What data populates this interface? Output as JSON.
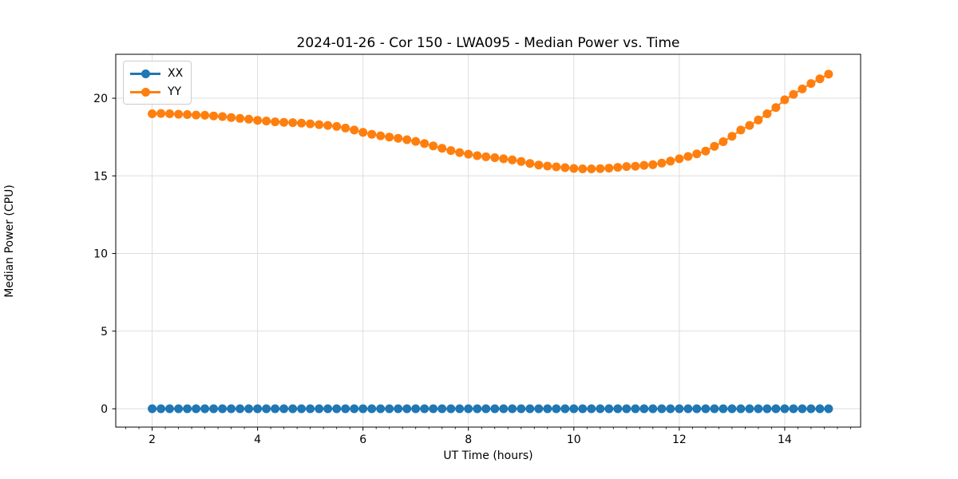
{
  "chart_data": {
    "type": "line",
    "title": "2024-01-26 - Cor 150 - LWA095 - Median Power vs. Time",
    "xlabel": "UT Time (hours)",
    "ylabel": "Median Power (CPU)",
    "xlim": [
      1.31,
      15.44
    ],
    "ylim": [
      -1.18,
      22.83
    ],
    "xticks": [
      2,
      4,
      6,
      8,
      10,
      12,
      14
    ],
    "yticks": [
      0,
      5,
      10,
      15,
      20
    ],
    "x_minor_tick_step": 0.25,
    "grid": "major-only",
    "grid_color": "#dedede",
    "legend_position": "upper-left",
    "x": [
      2,
      2.167,
      2.333,
      2.5,
      2.667,
      2.833,
      3,
      3.167,
      3.333,
      3.5,
      3.667,
      3.833,
      4,
      4.167,
      4.333,
      4.5,
      4.667,
      4.833,
      5,
      5.167,
      5.333,
      5.5,
      5.667,
      5.833,
      6,
      6.167,
      6.333,
      6.5,
      6.667,
      6.833,
      7,
      7.167,
      7.333,
      7.5,
      7.667,
      7.833,
      8,
      8.167,
      8.333,
      8.5,
      8.667,
      8.833,
      9,
      9.167,
      9.333,
      9.5,
      9.667,
      9.833,
      10,
      10.167,
      10.333,
      10.5,
      10.667,
      10.833,
      11,
      11.167,
      11.333,
      11.5,
      11.667,
      11.833,
      12,
      12.167,
      12.333,
      12.5,
      12.667,
      12.833,
      13,
      13.167,
      13.333,
      13.5,
      13.667,
      13.833,
      14,
      14.167,
      14.333,
      14.5,
      14.667,
      14.833
    ],
    "series": [
      {
        "name": "XX",
        "color": "#1f77b4",
        "values": [
          0,
          0,
          0,
          0,
          0,
          0,
          0,
          0,
          0,
          0,
          0,
          0,
          0,
          0,
          0,
          0,
          0,
          0,
          0,
          0,
          0,
          0,
          0,
          0,
          0,
          0,
          0,
          0,
          0,
          0,
          0,
          0,
          0,
          0,
          0,
          0,
          0,
          0,
          0,
          0,
          0,
          0,
          0,
          0,
          0,
          0,
          0,
          0,
          0,
          0,
          0,
          0,
          0,
          0,
          0,
          0,
          0,
          0,
          0,
          0,
          0,
          0,
          0,
          0,
          0,
          0,
          0,
          0,
          0,
          0,
          0,
          0,
          0,
          0,
          0,
          0,
          0,
          0
        ]
      },
      {
        "name": "YY",
        "color": "#ff7f0e",
        "values": [
          19.0,
          19.02,
          19.0,
          18.97,
          18.95,
          18.92,
          18.9,
          18.86,
          18.82,
          18.76,
          18.7,
          18.65,
          18.58,
          18.53,
          18.48,
          18.45,
          18.43,
          18.4,
          18.35,
          18.3,
          18.25,
          18.18,
          18.08,
          17.95,
          17.8,
          17.68,
          17.58,
          17.5,
          17.42,
          17.33,
          17.22,
          17.08,
          16.93,
          16.78,
          16.63,
          16.5,
          16.4,
          16.3,
          16.23,
          16.17,
          16.1,
          16.03,
          15.93,
          15.8,
          15.7,
          15.63,
          15.58,
          15.53,
          15.48,
          15.45,
          15.45,
          15.47,
          15.5,
          15.55,
          15.6,
          15.62,
          15.68,
          15.72,
          15.82,
          15.95,
          16.1,
          16.25,
          16.42,
          16.6,
          16.9,
          17.2,
          17.55,
          17.95,
          18.25,
          18.6,
          19.0,
          19.4,
          19.9,
          20.25,
          20.6,
          20.95,
          21.25,
          21.55
        ]
      }
    ]
  }
}
